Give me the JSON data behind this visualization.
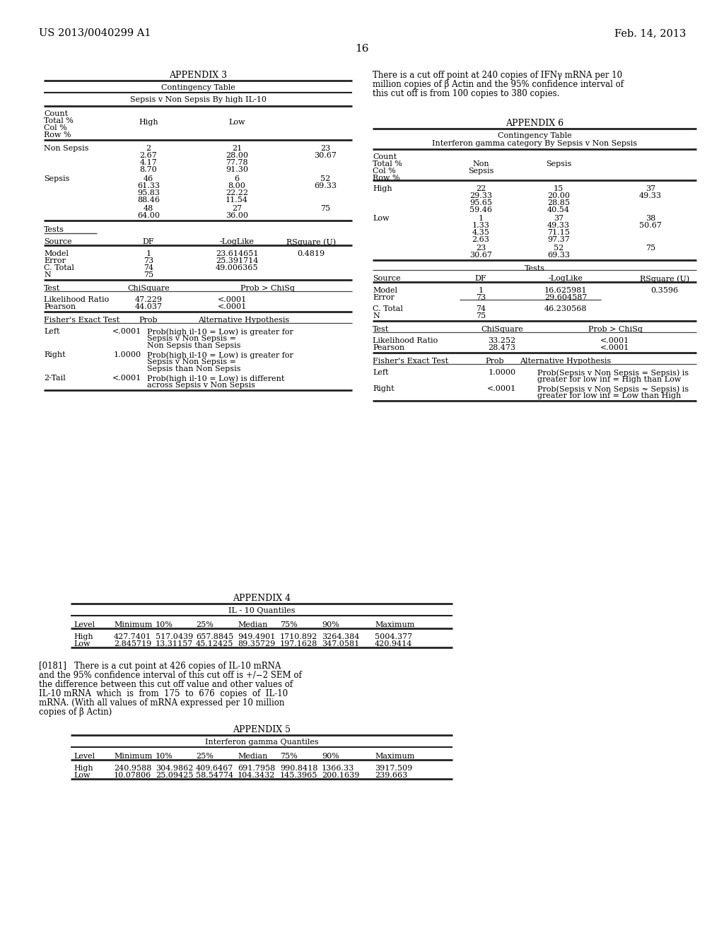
{
  "bg_color": "#ffffff",
  "header_left": "US 2013/0040299 A1",
  "header_right": "Feb. 14, 2013",
  "page_number": "16",
  "appendix3_title": "APPENDIX 3",
  "appendix3_sub1": "Contingency Table",
  "appendix3_sub2": "Sepsis v Non Sepsis By high IL-10",
  "right_text_line1": "There is a cut off point at 240 copies of IFNγ mRNA per 10",
  "right_text_line2": "million copies of β Actin and the 95% confidence interval of",
  "right_text_line3": "this cut off is from 100 copies to 380 copies.",
  "appendix6_title": "APPENDIX 6",
  "appendix6_sub1": "Contingency Table",
  "appendix6_sub2": "Interferon gamma category By Sepsis v Non Sepsis",
  "appendix4_title": "APPENDIX 4",
  "appendix4_sub": "IL - 10 Quantiles",
  "app4_col_headers": [
    "Level",
    "Minimum",
    "10%",
    "25%",
    "Median",
    "75%",
    "90%",
    "Maximum"
  ],
  "app4_high": [
    "High",
    "427.7401",
    "517.0439",
    "657.8845",
    "949.4901",
    "1710.892",
    "3264.384",
    "5004.377"
  ],
  "app4_low": [
    "Low",
    "2.845719",
    "13.31157",
    "45.12425",
    "89.35729",
    "197.1628",
    "347.0581",
    "420.9414"
  ],
  "para181_line1": "[0181]   There is a cut point at 426 copies of IL-10 mRNA",
  "para181_line2": "and the 95% confidence interval of this cut off is +/−2 SEM of",
  "para181_line3": "the difference between this cut off value and other values of",
  "para181_line4": "IL-10 mRNA  which  is  from  175  to  676  copies  of  IL-10",
  "para181_line5": "mRNA. (With all values of mRNA expressed per 10 million",
  "para181_line6": "copies of β Actin)",
  "appendix5_title": "APPENDIX 5",
  "appendix5_sub": "Interferon gamma Quantiles",
  "app5_col_headers": [
    "Level",
    "Minimum",
    "10%",
    "25%",
    "Median",
    "75%",
    "90%",
    "Maximum"
  ],
  "app5_high": [
    "High",
    "240.9588",
    "304.9862",
    "409.6467",
    "691.7958",
    "990.8418",
    "1366.33",
    "3917.509"
  ],
  "app5_low": [
    "Low",
    "10.07806",
    "25.09425",
    "58.54774",
    "104.3432",
    "145.3965",
    "200.1639",
    "239.663"
  ]
}
